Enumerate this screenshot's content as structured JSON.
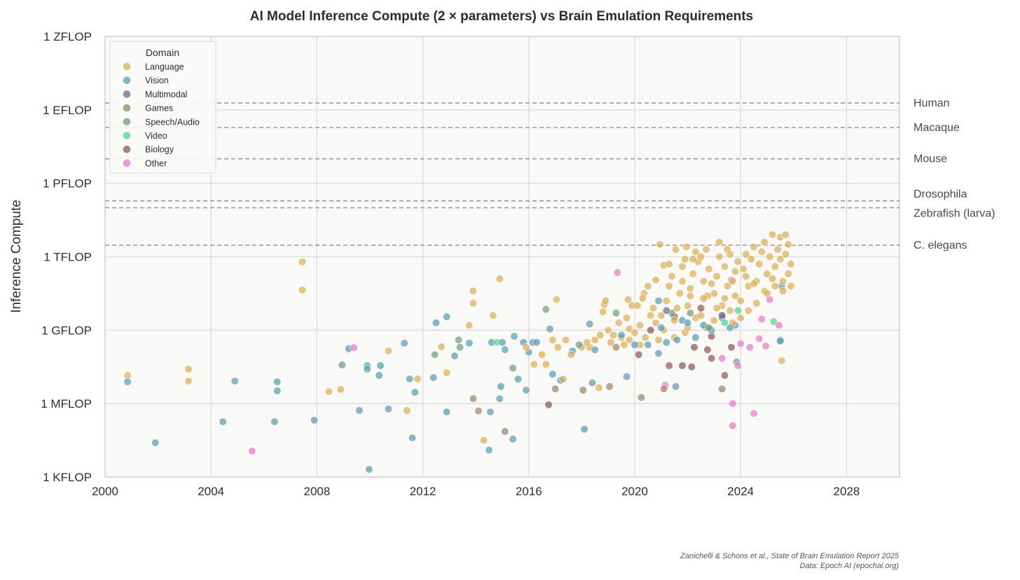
{
  "chart_data": {
    "type": "scatter",
    "title": "AI Model Inference Compute (2 × parameters) vs Brain Emulation Requirements",
    "xlabel": "",
    "ylabel": "Inference Compute",
    "xlim": [
      2000,
      2030
    ],
    "ylim_log10": [
      3,
      21
    ],
    "yscale": "log",
    "grid": true,
    "x_ticks": [
      2000,
      2004,
      2008,
      2012,
      2016,
      2020,
      2024,
      2028
    ],
    "x_tick_labels": [
      "2000",
      "2004",
      "2008",
      "2012",
      "2016",
      "2020",
      "2024",
      "2028"
    ],
    "y_ticks_log10": [
      3,
      6,
      9,
      12,
      15,
      18,
      21
    ],
    "y_tick_labels": [
      "1 KFLOP",
      "1 MFLOP",
      "1 GFLOP",
      "1 TFLOP",
      "1 PFLOP",
      "1 EFLOP",
      "1 ZFLOP"
    ],
    "legend": {
      "title": "Domain",
      "placement": "top-left",
      "entries": [
        "Language",
        "Vision",
        "Multimodal",
        "Games",
        "Speech/Audio",
        "Video",
        "Biology",
        "Other"
      ],
      "colors": [
        "#d9ae57",
        "#5a9db2",
        "#6e6a86",
        "#9c8569",
        "#6f9c80",
        "#4fd68d",
        "#8f5854",
        "#e47ccb"
      ]
    },
    "reference_lines": [
      {
        "label": "Human",
        "log10": 18.28
      },
      {
        "label": "Macaque",
        "log10": 17.28
      },
      {
        "label": "Mouse",
        "log10": 16.0
      },
      {
        "label": "Drosophila",
        "log10": 14.28
      },
      {
        "label": "Zebrafish (larva)",
        "log10": 14.0
      },
      {
        "label": "C. elegans",
        "log10": 12.47
      }
    ],
    "points_format": "[year, log10(FLOP), domain_index]",
    "points": [
      [
        2000.85,
        7.15,
        0
      ],
      [
        2000.85,
        6.89,
        1
      ],
      [
        2001.9,
        4.4,
        1
      ],
      [
        2003.15,
        7.41,
        0
      ],
      [
        2003.15,
        6.92,
        0
      ],
      [
        2004.9,
        6.92,
        1
      ],
      [
        2004.45,
        5.26,
        1
      ],
      [
        2005.55,
        4.06,
        7
      ],
      [
        2006.5,
        6.89,
        1
      ],
      [
        2006.5,
        6.52,
        1
      ],
      [
        2006.4,
        5.26,
        1
      ],
      [
        2007.9,
        5.32,
        1
      ],
      [
        2007.45,
        11.79,
        0
      ],
      [
        2007.45,
        10.64,
        0
      ],
      [
        2008.45,
        6.49,
        0
      ],
      [
        2008.9,
        6.58,
        0
      ],
      [
        2008.95,
        7.58,
        4
      ],
      [
        2009.2,
        8.24,
        1
      ],
      [
        2009.4,
        8.29,
        7
      ],
      [
        2009.6,
        5.72,
        1
      ],
      [
        2009.9,
        7.55,
        1
      ],
      [
        2009.9,
        7.41,
        1
      ],
      [
        2009.97,
        3.31,
        1
      ],
      [
        2010.35,
        7.15,
        1
      ],
      [
        2010.4,
        7.55,
        1
      ],
      [
        2010.7,
        5.78,
        1
      ],
      [
        2010.7,
        8.15,
        0
      ],
      [
        2011.3,
        8.47,
        1
      ],
      [
        2011.5,
        7.01,
        1
      ],
      [
        2011.6,
        4.6,
        1
      ],
      [
        2011.7,
        6.46,
        1
      ],
      [
        2011.8,
        7.01,
        0
      ],
      [
        2011.4,
        5.72,
        0
      ],
      [
        2012.4,
        7.06,
        1
      ],
      [
        2012.5,
        9.3,
        1
      ],
      [
        2012.7,
        8.32,
        0
      ],
      [
        2012.9,
        9.55,
        1
      ],
      [
        2012.9,
        7.26,
        0
      ],
      [
        2012.9,
        5.66,
        1
      ],
      [
        2012.45,
        8.0,
        4
      ],
      [
        2013.2,
        7.95,
        1
      ],
      [
        2013.35,
        8.6,
        4
      ],
      [
        2013.4,
        8.3,
        4
      ],
      [
        2013.9,
        10.6,
        0
      ],
      [
        2013.9,
        10.1,
        0
      ],
      [
        2013.75,
        9.2,
        0
      ],
      [
        2013.9,
        6.2,
        3
      ],
      [
        2014.1,
        5.7,
        3
      ],
      [
        2014.3,
        4.5,
        0
      ],
      [
        2014.5,
        4.1,
        1
      ],
      [
        2014.55,
        5.66,
        1
      ],
      [
        2013.75,
        8.47,
        1
      ],
      [
        2014.65,
        9.6,
        0
      ],
      [
        2014.9,
        11.1,
        0
      ],
      [
        2014.6,
        8.5,
        1
      ],
      [
        2014.8,
        8.5,
        5
      ],
      [
        2015.0,
        8.5,
        1
      ],
      [
        2015.1,
        8.2,
        1
      ],
      [
        2014.95,
        6.7,
        1
      ],
      [
        2014.9,
        6.2,
        1
      ],
      [
        2015.1,
        4.86,
        3
      ],
      [
        2015.4,
        7.45,
        4
      ],
      [
        2015.4,
        4.55,
        1
      ],
      [
        2015.45,
        8.75,
        1
      ],
      [
        2015.6,
        7.0,
        1
      ],
      [
        2015.8,
        8.5,
        1
      ],
      [
        2015.9,
        6.55,
        1
      ],
      [
        2016.0,
        8.1,
        1
      ],
      [
        2016.15,
        8.5,
        1
      ],
      [
        2016.3,
        8.5,
        1
      ],
      [
        2016.65,
        9.85,
        4
      ],
      [
        2016.65,
        7.6,
        0
      ],
      [
        2016.75,
        5.95,
        6
      ],
      [
        2016.9,
        7.2,
        1
      ],
      [
        2017.0,
        6.6,
        3
      ],
      [
        2017.05,
        10.25,
        0
      ],
      [
        2016.8,
        9.05,
        1
      ],
      [
        2017.2,
        6.95,
        1
      ],
      [
        2017.4,
        8.6,
        0
      ],
      [
        2017.65,
        8.15,
        1
      ],
      [
        2018.05,
        6.55,
        3
      ],
      [
        2018.1,
        4.95,
        1
      ],
      [
        2018.3,
        9.25,
        1
      ],
      [
        2018.4,
        6.85,
        1
      ],
      [
        2018.85,
        10.05,
        0
      ],
      [
        2018.8,
        9.75,
        0
      ],
      [
        2018.65,
        6.65,
        0
      ],
      [
        2019.05,
        6.7,
        3
      ],
      [
        2019.3,
        9.7,
        4
      ],
      [
        2019.35,
        11.35,
        7
      ],
      [
        2019.75,
        10.25,
        0
      ],
      [
        2019.7,
        7.1,
        1
      ],
      [
        2019.8,
        9.05,
        0
      ],
      [
        2020.15,
        8.0,
        6
      ],
      [
        2020.25,
        6.25,
        3
      ],
      [
        2020.35,
        10.5,
        0
      ],
      [
        2020.8,
        11.05,
        0
      ],
      [
        2020.95,
        12.5,
        0
      ],
      [
        2021.1,
        11.65,
        0
      ],
      [
        2020.9,
        10.2,
        1
      ],
      [
        2020.9,
        8.05,
        1
      ],
      [
        2021.15,
        6.75,
        7
      ],
      [
        2021.1,
        6.6,
        3
      ],
      [
        2021.3,
        7.55,
        6
      ],
      [
        2021.55,
        6.7,
        1
      ],
      [
        2021.5,
        9.55,
        6
      ],
      [
        2021.55,
        12.3,
        0
      ],
      [
        2021.8,
        11.6,
        0
      ],
      [
        2021.8,
        7.55,
        6
      ],
      [
        2021.95,
        12.4,
        0
      ],
      [
        2022.1,
        10.4,
        0
      ],
      [
        2022.15,
        7.5,
        6
      ],
      [
        2022.25,
        8.3,
        6
      ],
      [
        2022.7,
        12.3,
        0
      ],
      [
        2022.75,
        8.2,
        6
      ],
      [
        2022.75,
        10.4,
        0
      ],
      [
        2022.9,
        8.75,
        6
      ],
      [
        2022.9,
        7.85,
        6
      ],
      [
        2023.3,
        9.6,
        7
      ],
      [
        2023.3,
        7.85,
        7
      ],
      [
        2023.3,
        6.6,
        3
      ],
      [
        2023.4,
        7.15,
        6
      ],
      [
        2023.65,
        11.05,
        7
      ],
      [
        2023.65,
        8.3,
        6
      ],
      [
        2023.7,
        6.0,
        7
      ],
      [
        2023.7,
        5.1,
        7
      ],
      [
        2023.85,
        7.7,
        4
      ],
      [
        2023.9,
        7.55,
        7
      ],
      [
        2024.0,
        8.45,
        7
      ],
      [
        2024.35,
        8.3,
        7
      ],
      [
        2024.5,
        5.6,
        7
      ],
      [
        2024.7,
        8.65,
        7
      ],
      [
        2024.8,
        9.45,
        7
      ],
      [
        2024.95,
        8.35,
        7
      ],
      [
        2025.1,
        10.25,
        7
      ],
      [
        2025.25,
        9.35,
        5
      ],
      [
        2025.45,
        9.2,
        7
      ],
      [
        2025.5,
        8.6,
        1
      ],
      [
        2025.55,
        7.75,
        0
      ],
      [
        2025.5,
        8.55,
        1
      ],
      [
        2025.55,
        10.8,
        1
      ],
      [
        2023.8,
        9.2,
        1
      ],
      [
        2019.0,
        9.0,
        0
      ],
      [
        2019.2,
        8.8,
        0
      ],
      [
        2019.4,
        9.3,
        0
      ],
      [
        2019.5,
        8.7,
        0
      ],
      [
        2019.7,
        9.5,
        0
      ],
      [
        2019.9,
        10.0,
        0
      ],
      [
        2019.1,
        8.5,
        0
      ],
      [
        2018.7,
        8.8,
        0
      ],
      [
        2018.5,
        8.6,
        0
      ],
      [
        2018.3,
        8.3,
        0
      ],
      [
        2018.0,
        8.3,
        0
      ],
      [
        2018.9,
        10.2,
        0
      ],
      [
        2019.6,
        8.4,
        0
      ],
      [
        2019.8,
        8.6,
        0
      ],
      [
        2020.0,
        8.9,
        0
      ],
      [
        2020.2,
        9.2,
        0
      ],
      [
        2020.4,
        8.7,
        0
      ],
      [
        2020.6,
        9.6,
        0
      ],
      [
        2020.8,
        9.3,
        0
      ],
      [
        2020.1,
        10.0,
        0
      ],
      [
        2020.3,
        10.3,
        0
      ],
      [
        2020.5,
        10.8,
        0
      ],
      [
        2020.7,
        9.9,
        0
      ],
      [
        2020.9,
        8.6,
        0
      ],
      [
        2020.2,
        8.4,
        0
      ],
      [
        2021.0,
        9.6,
        0
      ],
      [
        2021.2,
        10.2,
        0
      ],
      [
        2021.3,
        10.8,
        0
      ],
      [
        2021.4,
        11.2,
        0
      ],
      [
        2021.5,
        9.4,
        0
      ],
      [
        2021.6,
        9.9,
        0
      ],
      [
        2021.7,
        10.5,
        0
      ],
      [
        2021.8,
        11.0,
        0
      ],
      [
        2021.9,
        8.9,
        0
      ],
      [
        2021.1,
        9.0,
        0
      ],
      [
        2021.5,
        8.7,
        0
      ],
      [
        2021.3,
        11.7,
        0
      ],
      [
        2021.9,
        11.9,
        0
      ],
      [
        2022.0,
        10.0,
        0
      ],
      [
        2022.1,
        10.7,
        0
      ],
      [
        2022.2,
        11.3,
        0
      ],
      [
        2022.3,
        9.5,
        0
      ],
      [
        2022.4,
        11.8,
        0
      ],
      [
        2022.5,
        12.0,
        0
      ],
      [
        2022.6,
        10.3,
        0
      ],
      [
        2022.7,
        9.1,
        0
      ],
      [
        2022.8,
        11.5,
        0
      ],
      [
        2022.9,
        10.9,
        0
      ],
      [
        2022.0,
        9.1,
        0
      ],
      [
        2022.2,
        11.9,
        0
      ],
      [
        2022.5,
        9.6,
        0
      ],
      [
        2022.6,
        11.0,
        0
      ],
      [
        2022.3,
        12.2,
        0
      ],
      [
        2023.0,
        10.5,
        0
      ],
      [
        2023.1,
        11.2,
        0
      ],
      [
        2023.2,
        12.0,
        0
      ],
      [
        2023.3,
        10.0,
        0
      ],
      [
        2023.4,
        11.6,
        0
      ],
      [
        2023.5,
        12.3,
        0
      ],
      [
        2023.6,
        9.8,
        0
      ],
      [
        2023.7,
        11.0,
        0
      ],
      [
        2023.8,
        10.4,
        0
      ],
      [
        2023.9,
        11.8,
        0
      ],
      [
        2023.0,
        9.4,
        0
      ],
      [
        2023.2,
        12.6,
        0
      ],
      [
        2023.5,
        10.8,
        0
      ],
      [
        2023.7,
        9.3,
        0
      ],
      [
        2023.4,
        10.3,
        0
      ],
      [
        2023.8,
        11.4,
        0
      ],
      [
        2023.1,
        9.9,
        0
      ],
      [
        2023.6,
        12.1,
        0
      ],
      [
        2024.0,
        10.2,
        0
      ],
      [
        2024.1,
        11.5,
        0
      ],
      [
        2024.2,
        12.1,
        0
      ],
      [
        2024.3,
        10.8,
        0
      ],
      [
        2024.4,
        11.9,
        0
      ],
      [
        2024.5,
        12.4,
        0
      ],
      [
        2024.6,
        11.0,
        0
      ],
      [
        2024.7,
        11.7,
        0
      ],
      [
        2024.8,
        12.2,
        0
      ],
      [
        2024.9,
        10.6,
        0
      ],
      [
        2024.0,
        9.5,
        0
      ],
      [
        2024.3,
        9.8,
        0
      ],
      [
        2024.6,
        10.1,
        0
      ],
      [
        2024.2,
        11.2,
        0
      ],
      [
        2024.9,
        12.6,
        0
      ],
      [
        2024.5,
        10.9,
        0
      ],
      [
        2025.0,
        11.3,
        0
      ],
      [
        2025.1,
        12.0,
        0
      ],
      [
        2025.2,
        12.9,
        0
      ],
      [
        2025.3,
        11.6,
        0
      ],
      [
        2025.4,
        12.3,
        0
      ],
      [
        2025.5,
        12.8,
        0
      ],
      [
        2025.6,
        11.0,
        0
      ],
      [
        2025.7,
        12.1,
        0
      ],
      [
        2025.8,
        12.5,
        0
      ],
      [
        2025.9,
        11.7,
        0
      ],
      [
        2025.0,
        10.5,
        0
      ],
      [
        2025.3,
        10.8,
        0
      ],
      [
        2025.6,
        10.6,
        0
      ],
      [
        2025.9,
        10.8,
        0
      ],
      [
        2025.5,
        11.9,
        0
      ],
      [
        2025.7,
        12.9,
        0
      ],
      [
        2025.2,
        11.1,
        0
      ],
      [
        2025.8,
        11.3,
        0
      ],
      [
        2019.5,
        8.8,
        1
      ],
      [
        2020.0,
        8.4,
        1
      ],
      [
        2020.5,
        8.4,
        1
      ],
      [
        2021.0,
        9.1,
        1
      ],
      [
        2021.2,
        8.5,
        1
      ],
      [
        2021.6,
        8.6,
        1
      ],
      [
        2021.8,
        9.4,
        1
      ],
      [
        2022.0,
        9.3,
        1
      ],
      [
        2022.3,
        8.7,
        1
      ],
      [
        2022.6,
        9.2,
        1
      ],
      [
        2022.9,
        9.0,
        1
      ],
      [
        2023.3,
        9.5,
        1
      ],
      [
        2023.6,
        9.1,
        1
      ],
      [
        2021.4,
        9.7,
        4
      ],
      [
        2022.1,
        9.7,
        4
      ],
      [
        2022.8,
        9.1,
        4
      ],
      [
        2023.4,
        9.3,
        5
      ],
      [
        2023.9,
        9.8,
        5
      ],
      [
        2021.2,
        9.8,
        2
      ],
      [
        2023.3,
        9.6,
        2
      ],
      [
        2022.5,
        9.9,
        6
      ],
      [
        2020.6,
        9.0,
        6
      ],
      [
        2019.3,
        8.3,
        3
      ],
      [
        2018.5,
        8.2,
        1
      ],
      [
        2017.9,
        8.4,
        4
      ],
      [
        2018.2,
        8.5,
        0
      ],
      [
        2017.1,
        8.3,
        0
      ],
      [
        2016.9,
        8.6,
        0
      ],
      [
        2016.5,
        8.0,
        0
      ],
      [
        2017.6,
        8.0,
        0
      ],
      [
        2015.9,
        8.3,
        0
      ],
      [
        2016.2,
        7.6,
        0
      ],
      [
        2017.3,
        7.0,
        0
      ]
    ],
    "footnote": [
      "Zanichelli & Schons et al., State of Brain Emulation Report 2025",
      "Data: Epoch AI (epochai.org)"
    ]
  }
}
